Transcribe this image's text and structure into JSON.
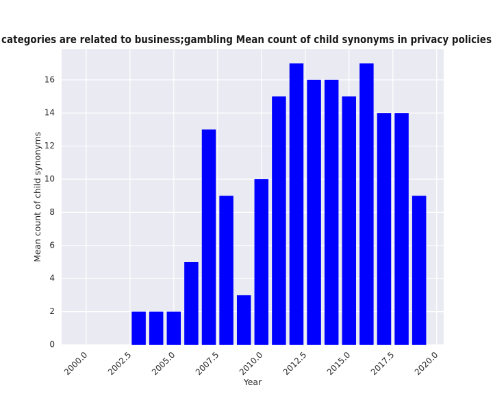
{
  "chart_data": {
    "type": "bar",
    "title": "categories are related to business;gambling Mean count of child synonyms in privacy policies",
    "xlabel": "Year",
    "ylabel": "Mean count of child synonyms",
    "x": [
      2003,
      2004,
      2005,
      2006,
      2007,
      2008,
      2009,
      2010,
      2011,
      2012,
      2013,
      2014,
      2015,
      2016,
      2017,
      2018,
      2019
    ],
    "values": [
      2,
      2,
      2,
      5,
      13,
      9,
      3,
      10,
      15,
      17,
      16,
      16,
      15,
      17,
      14,
      14,
      9
    ],
    "xlim": [
      1998.6,
      2020.4
    ],
    "ylim": [
      0,
      17.85
    ],
    "xticks": [
      2000.0,
      2002.5,
      2005.0,
      2007.5,
      2010.0,
      2012.5,
      2015.0,
      2017.5,
      2020.0
    ],
    "xtick_labels": [
      "2000.0",
      "2002.5",
      "2005.0",
      "2007.5",
      "2010.0",
      "2012.5",
      "2015.0",
      "2017.5",
      "2020.0"
    ],
    "yticks": [
      0,
      2,
      4,
      6,
      8,
      10,
      12,
      14,
      16
    ],
    "ytick_labels": [
      "0",
      "2",
      "4",
      "6",
      "8",
      "10",
      "12",
      "14",
      "16"
    ],
    "grid": true,
    "colors": {
      "bar": "#0000ff",
      "plot_background": "#eaeaf2",
      "grid": "#ffffff"
    }
  }
}
